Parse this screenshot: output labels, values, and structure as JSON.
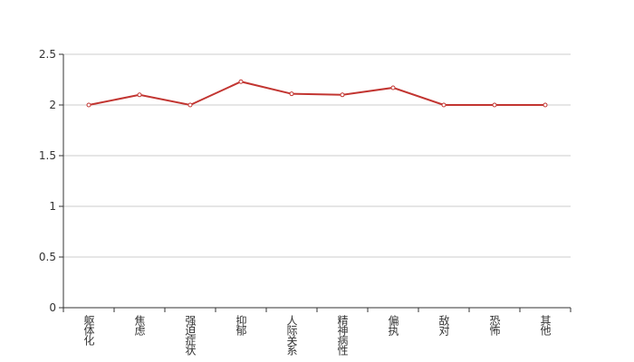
{
  "chart_data": {
    "type": "line",
    "categories": [
      "躯体化",
      "焦虑",
      "强迫症状",
      "抑郁",
      "人际关系",
      "精神病性",
      "偏执",
      "敌对",
      "恐怖",
      "其他"
    ],
    "series": [
      {
        "color": "#c23531",
        "values": [
          2.0,
          2.1,
          2.0,
          2.23,
          2.11,
          2.1,
          2.17,
          2.0,
          2.0,
          2.0
        ]
      }
    ],
    "ylim": [
      0,
      2.5
    ],
    "yticks": [
      0,
      0.5,
      1,
      1.5,
      2,
      2.5
    ],
    "grid": true
  }
}
